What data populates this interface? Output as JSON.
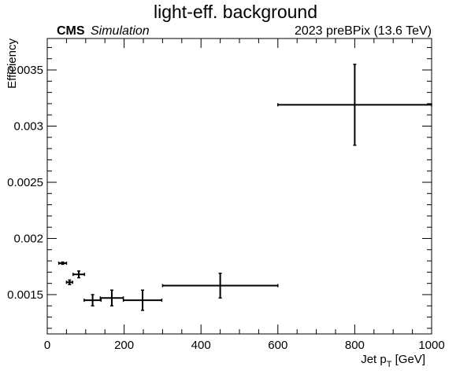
{
  "chart_data": {
    "type": "scatter",
    "title": "light-eff. background",
    "cms_label": "CMS",
    "cms_sublabel": "Simulation",
    "run_label": "2023 preBPix (13.6 TeV)",
    "xlabel": "Jet p",
    "xlabel_sub": "T",
    "xlabel_unit": " [GeV]",
    "ylabel": "Efficiency",
    "xlim": [
      0,
      1000
    ],
    "ylim": [
      0.00115,
      0.00378
    ],
    "x_ticks": [
      0,
      200,
      400,
      600,
      800,
      1000
    ],
    "x_tick_labels": [
      "0",
      "200",
      "400",
      "600",
      "800",
      "1000"
    ],
    "y_ticks": [
      0.0015,
      0.002,
      0.0025,
      0.003,
      0.0035
    ],
    "y_tick_labels": [
      "0.0015",
      "0.002",
      "0.0025",
      "0.003",
      "0.0035"
    ],
    "grid": false,
    "points": [
      {
        "x": 40,
        "y": 0.00178,
        "xerr": 10,
        "yerr": 1e-05
      },
      {
        "x": 58,
        "y": 0.00161,
        "xerr": 8,
        "yerr": 2e-05
      },
      {
        "x": 82,
        "y": 0.00168,
        "xerr": 15,
        "yerr": 3e-05
      },
      {
        "x": 118,
        "y": 0.00145,
        "xerr": 22,
        "yerr": 5e-05
      },
      {
        "x": 168,
        "y": 0.00147,
        "xerr": 30,
        "yerr": 7e-05
      },
      {
        "x": 248,
        "y": 0.00145,
        "xerr": 50,
        "yerr": 9e-05
      },
      {
        "x": 450,
        "y": 0.00158,
        "xerr": 150,
        "yerr": 0.00011
      },
      {
        "x": 800,
        "y": 0.00319,
        "xerr": 200,
        "yerr": 0.00036
      }
    ]
  }
}
